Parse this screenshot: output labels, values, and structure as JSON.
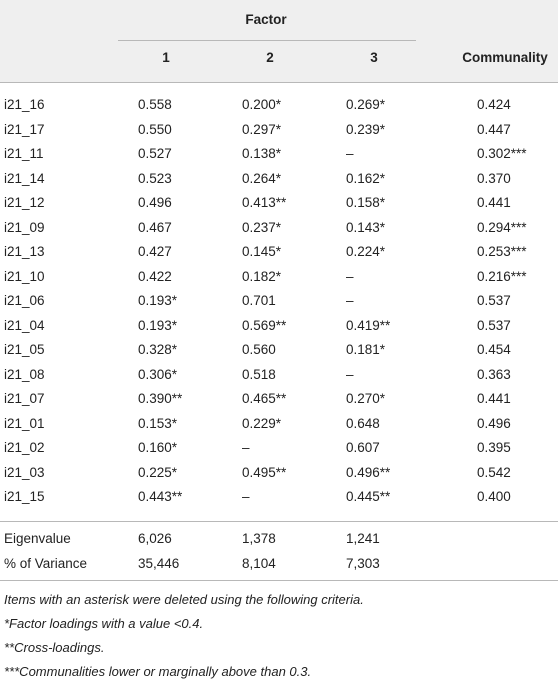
{
  "table": {
    "group_header": "Factor",
    "columns": [
      "1",
      "2",
      "3",
      "Communality"
    ],
    "rows": [
      [
        "i21_16",
        "0.558",
        "0.200*",
        "0.269*",
        "0.424"
      ],
      [
        "i21_17",
        "0.550",
        "0.297*",
        "0.239*",
        "0.447"
      ],
      [
        "i21_11",
        "0.527",
        "0.138*",
        "–",
        "0.302***"
      ],
      [
        "i21_14",
        "0.523",
        "0.264*",
        "0.162*",
        "0.370"
      ],
      [
        "i21_12",
        "0.496",
        "0.413**",
        "0.158*",
        "0.441"
      ],
      [
        "i21_09",
        "0.467",
        "0.237*",
        "0.143*",
        "0.294***"
      ],
      [
        "i21_13",
        "0.427",
        "0.145*",
        "0.224*",
        "0.253***"
      ],
      [
        "i21_10",
        "0.422",
        "0.182*",
        "–",
        "0.216***"
      ],
      [
        "i21_06",
        "0.193*",
        "0.701",
        "–",
        "0.537"
      ],
      [
        "i21_04",
        "0.193*",
        "0.569**",
        "0.419**",
        "0.537"
      ],
      [
        "i21_05",
        "0.328*",
        "0.560",
        "0.181*",
        "0.454"
      ],
      [
        "i21_08",
        "0.306*",
        "0.518",
        "–",
        "0.363"
      ],
      [
        "i21_07",
        "0.390**",
        "0.465**",
        "0.270*",
        "0.441"
      ],
      [
        "i21_01",
        "0.153*",
        "0.229*",
        "0.648",
        "0.496"
      ],
      [
        "i21_02",
        "0.160*",
        "–",
        "0.607",
        "0.395"
      ],
      [
        "i21_03",
        "0.225*",
        "0.495**",
        "0.496**",
        "0.542"
      ],
      [
        "i21_15",
        "0.443**",
        "–",
        "0.445**",
        "0.400"
      ]
    ],
    "summary_rows": [
      [
        "Eigenvalue",
        "6,026",
        "1,378",
        "1,241"
      ],
      [
        "% of Variance",
        "35,446",
        "8,104",
        "7,303"
      ]
    ],
    "notes": [
      "Items with an asterisk were deleted using the following criteria.",
      "*Factor loadings with a value <0.4.",
      "**Cross-loadings.",
      "***Communalities lower or marginally above than 0.3."
    ]
  }
}
